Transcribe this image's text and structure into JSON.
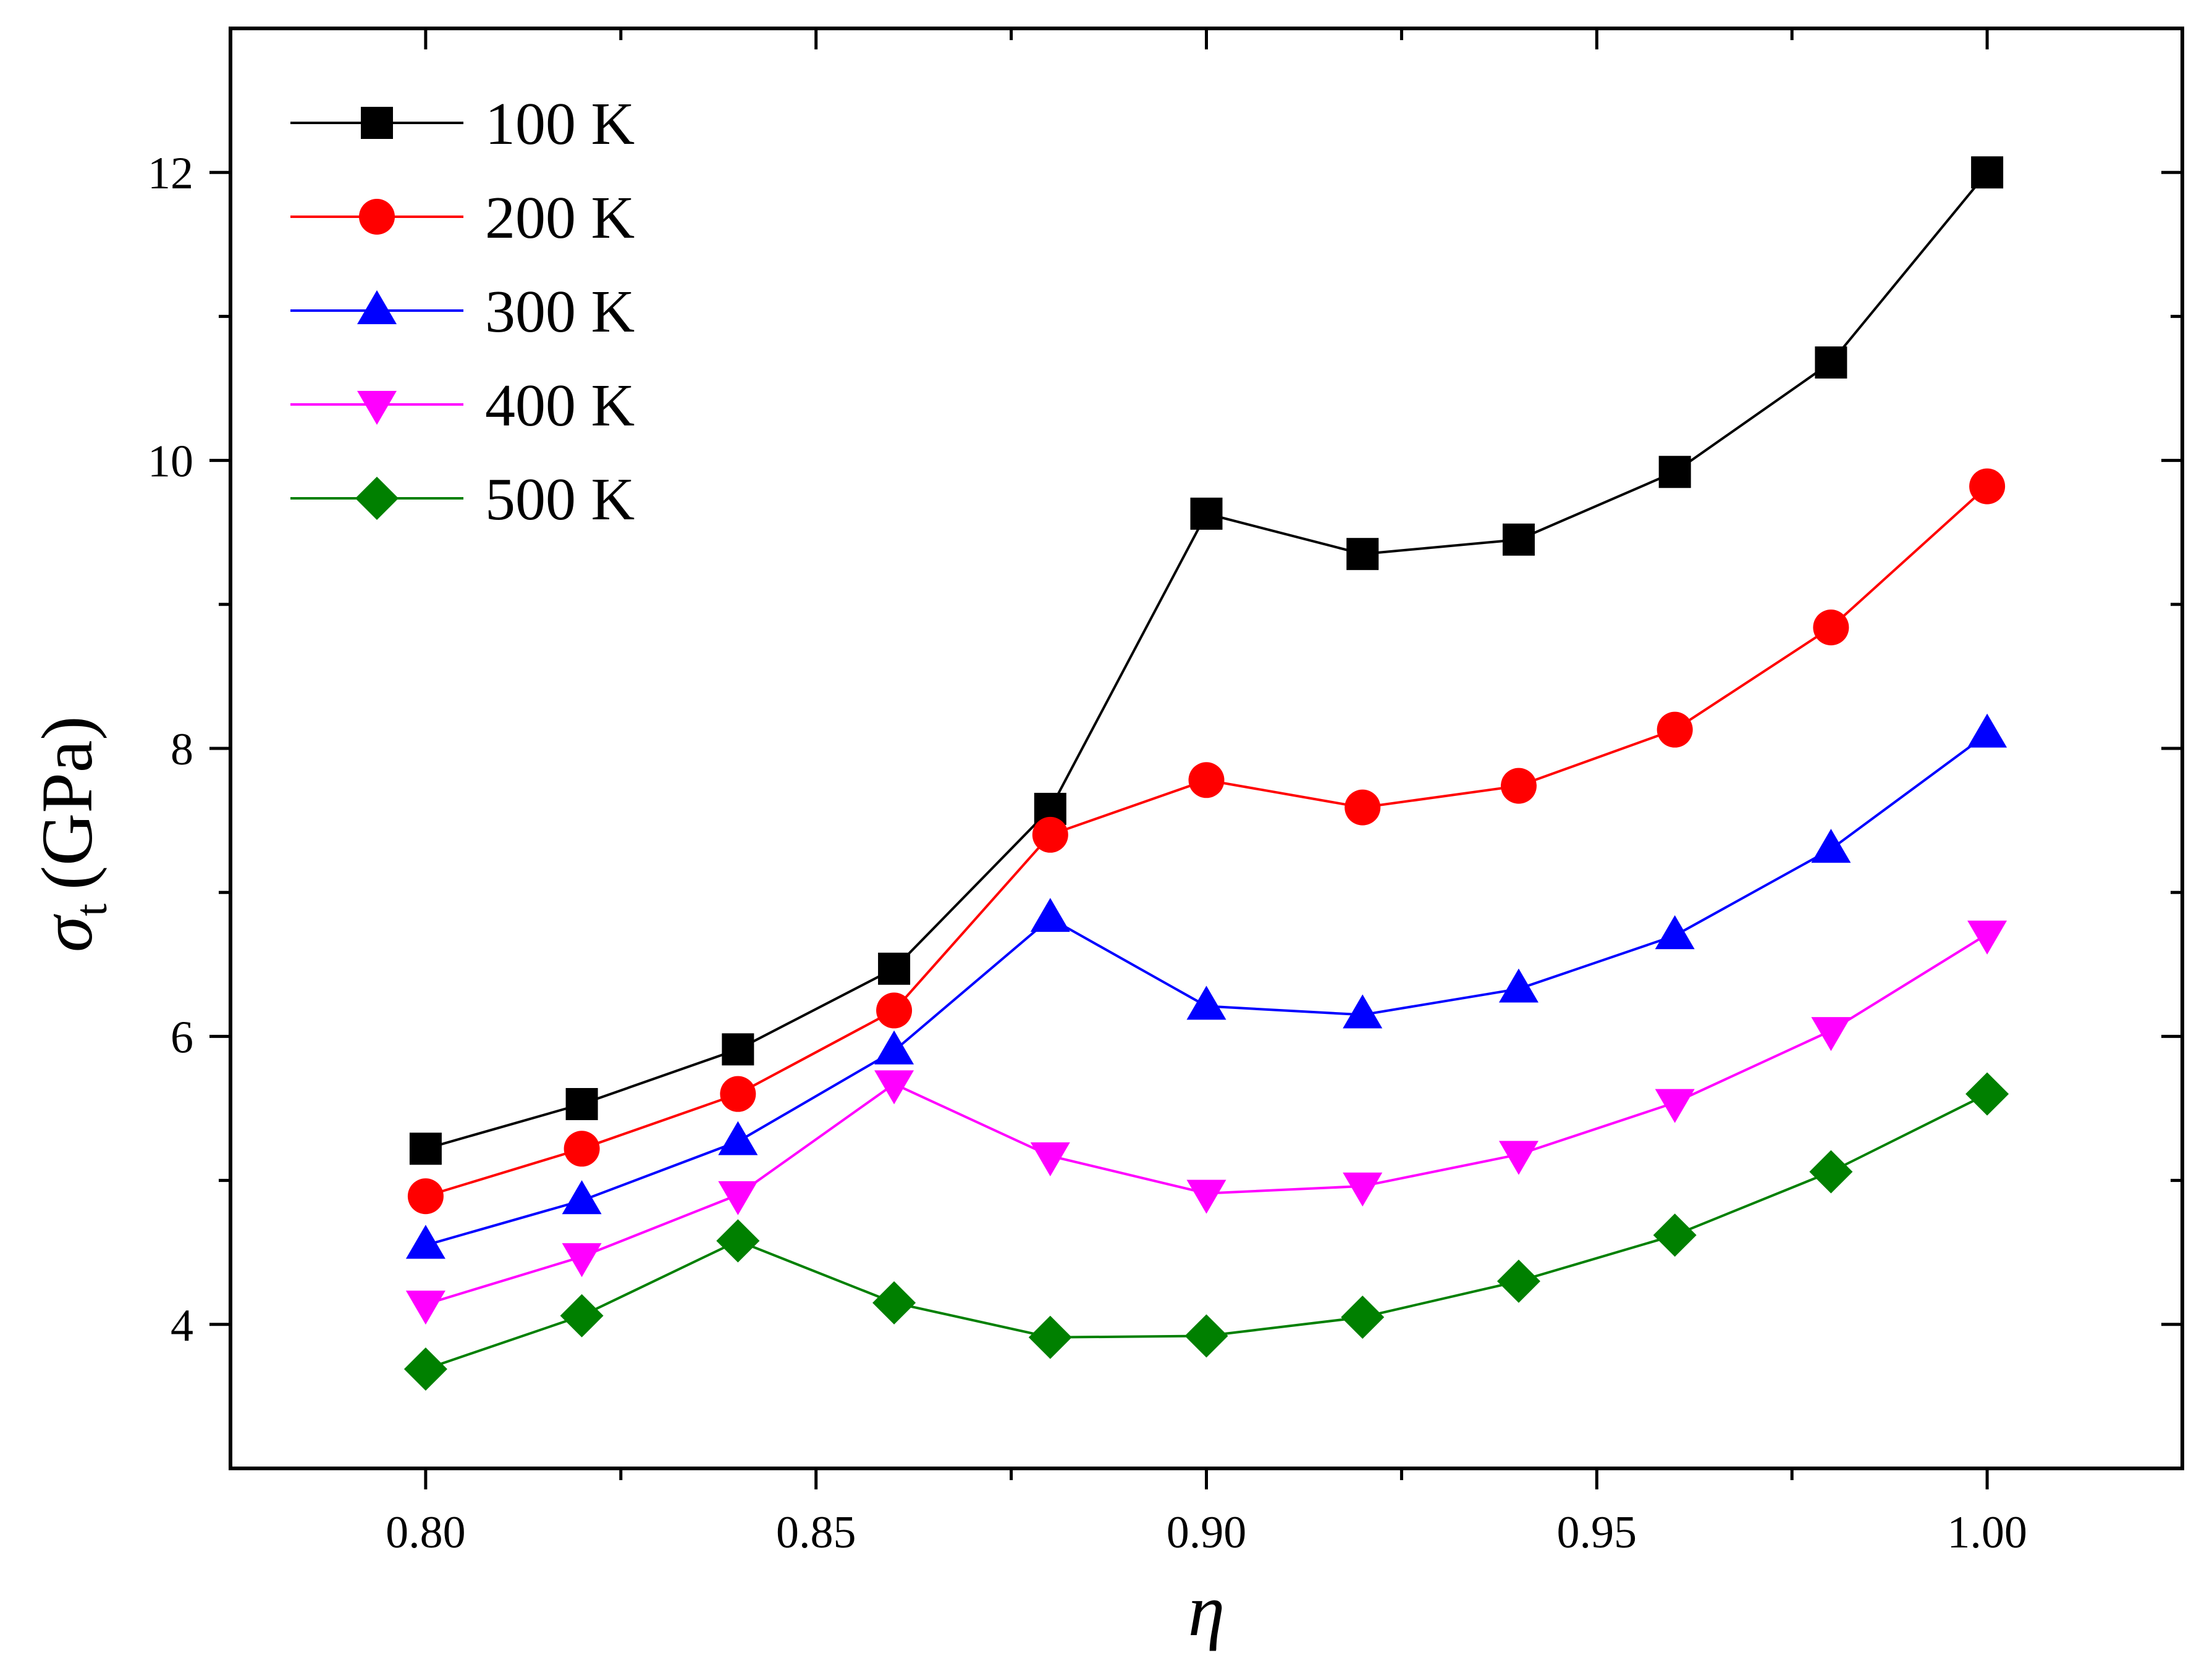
{
  "chart_data": {
    "type": "line",
    "title": "",
    "xlabel": "η",
    "ylabel_symbol": "σ",
    "ylabel_subscript": "t",
    "ylabel_unit": "(GPa)",
    "xlim": [
      0.775,
      1.025
    ],
    "ylim": [
      3.0,
      13.0
    ],
    "x_ticks": [
      0.8,
      0.85,
      0.9,
      0.95,
      1.0
    ],
    "x_tick_labels": [
      "0.80",
      "0.85",
      "0.90",
      "0.95",
      "1.00"
    ],
    "x_minor_ticks": [
      0.825,
      0.875,
      0.925,
      0.975
    ],
    "y_ticks": [
      4,
      6,
      8,
      10,
      12
    ],
    "y_tick_labels": [
      "4",
      "6",
      "8",
      "10",
      "12"
    ],
    "y_minor_ticks": [
      5,
      7,
      9,
      11
    ],
    "grid": false,
    "legend_position": "top-left",
    "x": [
      0.8,
      0.82,
      0.84,
      0.86,
      0.88,
      0.9,
      0.92,
      0.94,
      0.96,
      0.98,
      1.0
    ],
    "series": [
      {
        "name": "100 K",
        "color": "#000000",
        "marker": "square",
        "values": [
          5.22,
          5.53,
          5.91,
          6.47,
          7.58,
          9.63,
          9.35,
          9.45,
          9.92,
          10.68,
          12.0
        ]
      },
      {
        "name": "200 K",
        "color": "#ff0000",
        "marker": "circle",
        "values": [
          4.89,
          5.22,
          5.6,
          6.18,
          7.4,
          7.78,
          7.59,
          7.74,
          8.13,
          8.84,
          9.82
        ]
      },
      {
        "name": "300 K",
        "color": "#0000ff",
        "marker": "triangle-up",
        "values": [
          4.55,
          4.86,
          5.27,
          5.9,
          6.82,
          6.21,
          6.15,
          6.33,
          6.7,
          7.3,
          8.1
        ]
      },
      {
        "name": "400 K",
        "color": "#ff00ff",
        "marker": "triangle-down",
        "values": [
          4.14,
          4.47,
          4.9,
          5.67,
          5.17,
          4.91,
          4.96,
          5.18,
          5.54,
          6.04,
          6.71
        ]
      },
      {
        "name": "500 K",
        "color": "#008000",
        "marker": "diamond",
        "values": [
          3.69,
          4.06,
          4.58,
          4.15,
          3.91,
          3.92,
          4.05,
          4.3,
          4.62,
          5.06,
          5.6
        ]
      }
    ]
  }
}
